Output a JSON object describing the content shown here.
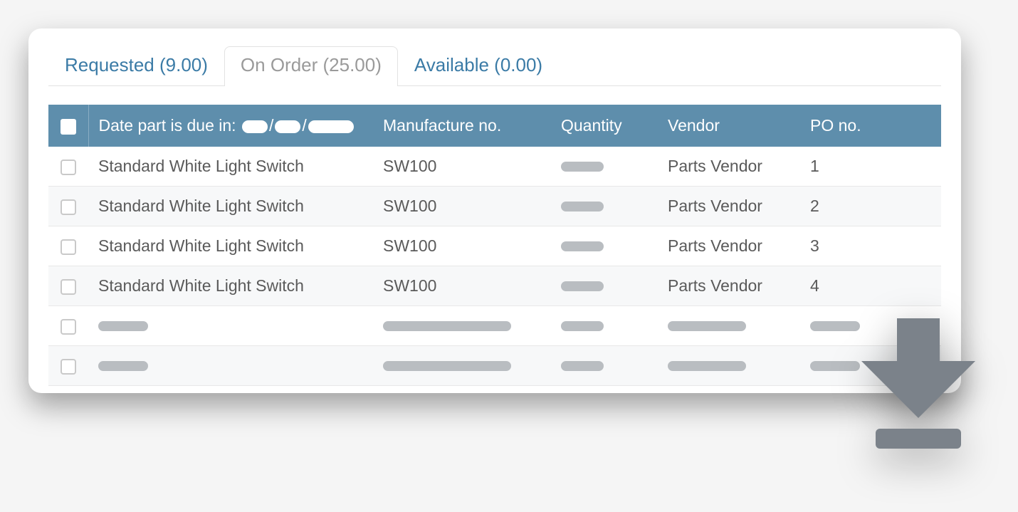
{
  "colors": {
    "header_bg": "#5e8eac",
    "tab_active_text": "#9a9a9a",
    "tab_text": "#3b7ba6",
    "skeleton": "#b9bdc1",
    "row_text": "#5a5a5a",
    "icon_fill": "#7b828a"
  },
  "tabs": [
    {
      "label": "Requested (9.00)",
      "active": false
    },
    {
      "label": "On Order (25.00)",
      "active": true
    },
    {
      "label": "Available (0.00)",
      "active": false
    }
  ],
  "table": {
    "header": {
      "date_label_prefix": "Date part is due in: ",
      "date_mask_sep": "/",
      "mfg": "Manufacture no.",
      "qty": "Quantity",
      "vendor": "Vendor",
      "po": "PO no."
    },
    "rows": [
      {
        "date": "Standard White Light Switch",
        "mfg": "SW100",
        "qty": null,
        "vendor": "Parts Vendor",
        "po": "1"
      },
      {
        "date": "Standard White Light Switch",
        "mfg": "SW100",
        "qty": null,
        "vendor": "Parts Vendor",
        "po": "2"
      },
      {
        "date": "Standard White Light Switch",
        "mfg": "SW100",
        "qty": null,
        "vendor": "Parts Vendor",
        "po": "3"
      },
      {
        "date": "Standard White Light Switch",
        "mfg": "SW100",
        "qty": null,
        "vendor": "Parts Vendor",
        "po": "4"
      },
      {
        "date": null,
        "mfg": null,
        "qty": null,
        "vendor": null,
        "po": null
      },
      {
        "date": null,
        "mfg": null,
        "qty": null,
        "vendor": null,
        "po": null
      }
    ],
    "skeleton_widths": {
      "date": 70,
      "mfg": 180,
      "qty": 60,
      "vendor": 110,
      "po": 70,
      "date_mask1": 36,
      "date_mask2": 36,
      "date_mask3": 64
    }
  }
}
